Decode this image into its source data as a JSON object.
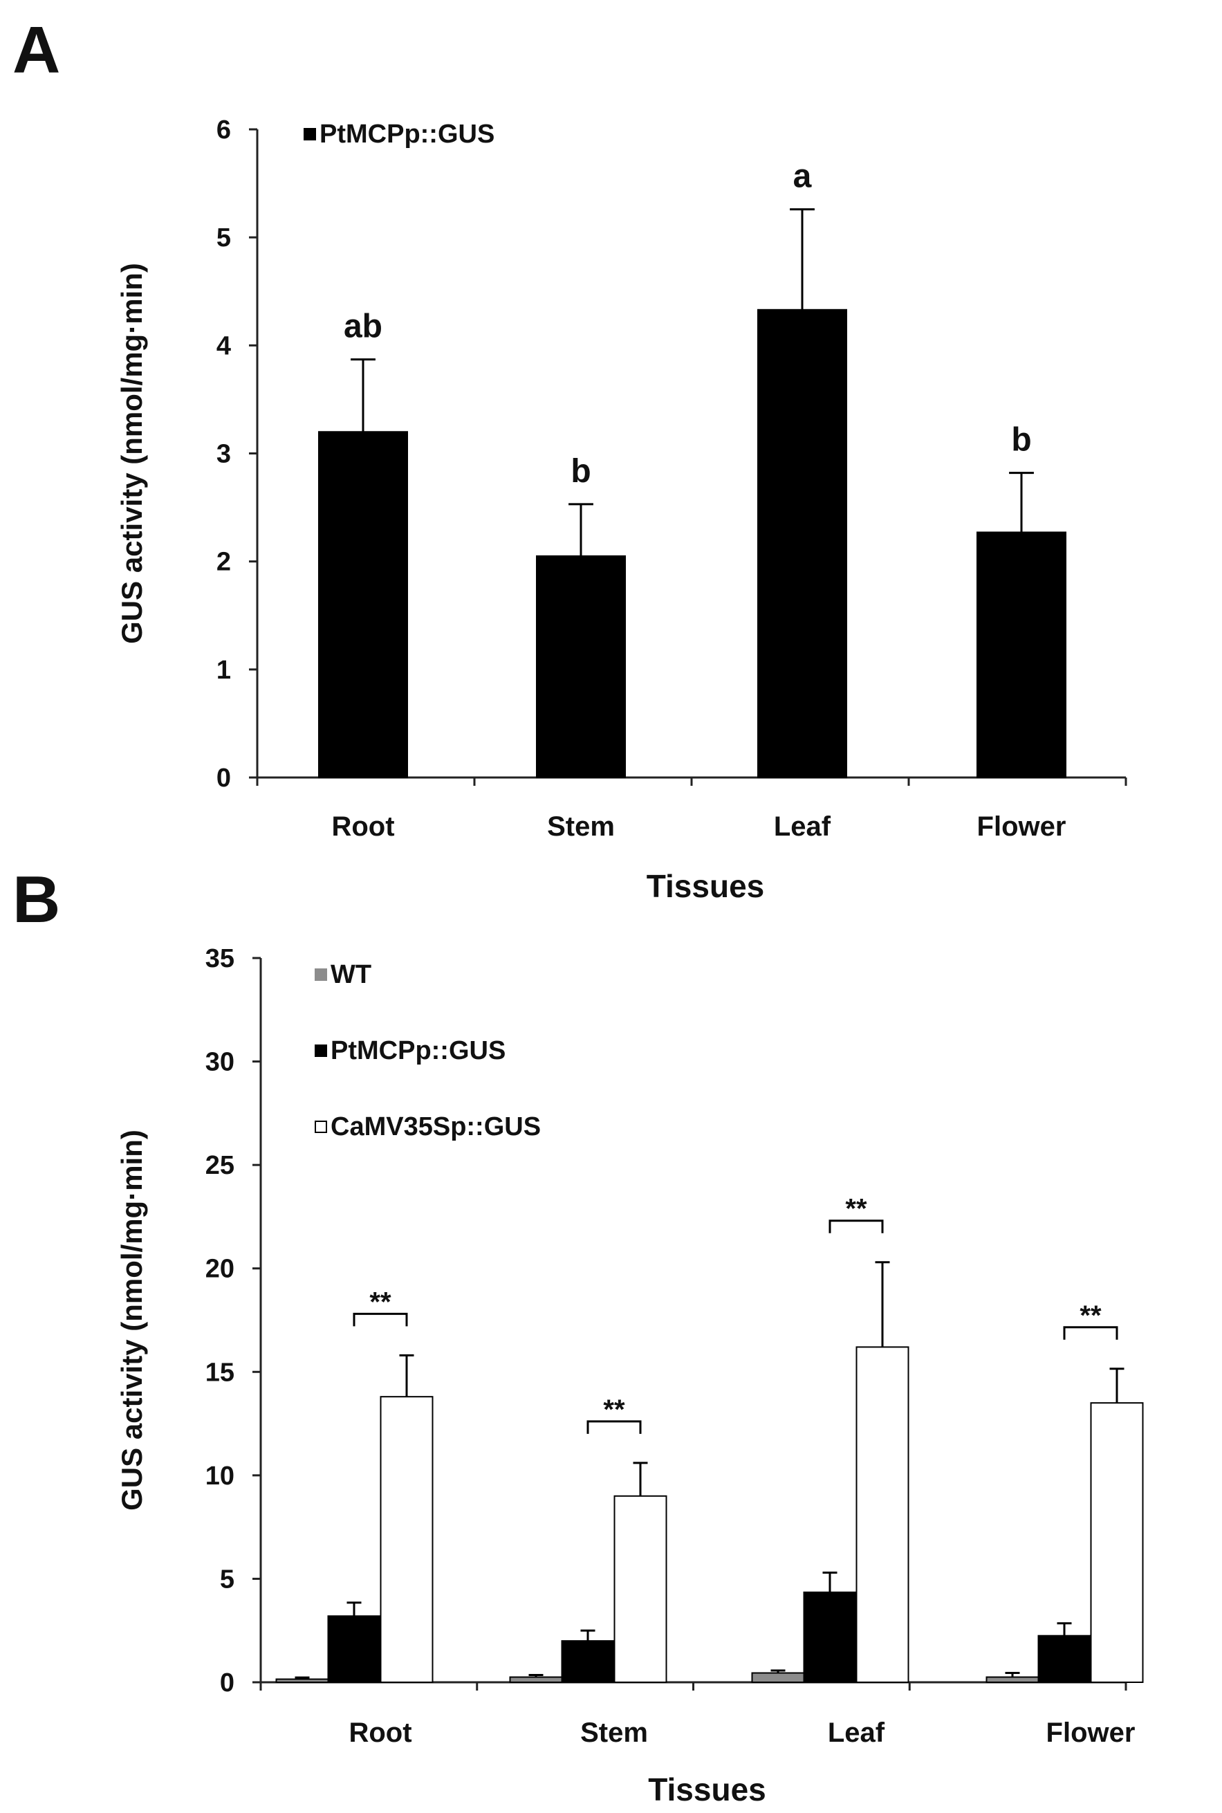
{
  "chart_data": [
    {
      "panel": "A",
      "type": "bar",
      "categories": [
        "Root",
        "Stem",
        "Leaf",
        "Flower"
      ],
      "series": [
        {
          "name": "PtMCPp::GUS",
          "color": "#000000",
          "values": [
            3.2,
            2.05,
            4.33,
            2.27
          ],
          "errors": [
            0.67,
            0.48,
            0.93,
            0.55
          ]
        }
      ],
      "annotations": [
        "ab",
        "b",
        "a",
        "b"
      ],
      "xlabel": "Tissues",
      "ylabel": "GUS activity (nmol/mg·min)",
      "ylim": [
        0,
        6
      ],
      "yticks": [
        0,
        1,
        2,
        3,
        4,
        5,
        6
      ],
      "legend": [
        "PtMCPp::GUS"
      ],
      "legend_position": "top-left"
    },
    {
      "panel": "B",
      "type": "bar",
      "categories": [
        "Root",
        "Stem",
        "Leaf",
        "Flower"
      ],
      "series": [
        {
          "name": "WT",
          "color": "#8c8c8c",
          "values": [
            0.15,
            0.25,
            0.45,
            0.25
          ],
          "errors": [
            0.08,
            0.1,
            0.12,
            0.2
          ]
        },
        {
          "name": "PtMCPp::GUS",
          "color": "#000000",
          "values": [
            3.2,
            2.0,
            4.35,
            2.25
          ],
          "errors": [
            0.65,
            0.5,
            0.95,
            0.6
          ]
        },
        {
          "name": "CaMV35Sp::GUS",
          "color": "#ffffff",
          "values": [
            13.8,
            9.0,
            16.2,
            13.5
          ],
          "errors": [
            2.0,
            1.6,
            4.1,
            1.65
          ]
        }
      ],
      "significance": [
        "**",
        "**",
        "**",
        "**"
      ],
      "xlabel": "Tissues",
      "ylabel": "GUS activity (nmol/mg·min)",
      "ylim": [
        0,
        35
      ],
      "yticks": [
        0,
        5,
        10,
        15,
        20,
        25,
        30,
        35
      ],
      "legend": [
        "WT",
        "PtMCPp::GUS",
        "CaMV35Sp::GUS"
      ],
      "legend_position": "top-left"
    }
  ]
}
